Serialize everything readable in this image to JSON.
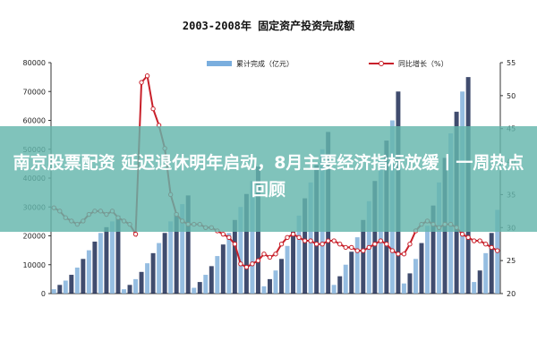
{
  "banner": {
    "title": "南京股票配资 延迟退休明年启动，8月主要经济指标放缓丨一周热点回顾"
  },
  "chart_data": {
    "type": "bar",
    "title": "2003-2008年 固定资产投资完成额",
    "legend": "top",
    "categories": [
      "",
      "",
      "",
      "",
      "",
      "",
      "",
      "",
      "",
      "",
      "",
      "",
      "",
      "",
      "",
      "",
      "",
      "",
      "",
      "",
      "",
      "",
      "",
      "",
      "",
      "",
      "",
      "",
      "",
      "",
      "",
      "",
      "",
      "",
      "",
      "",
      "",
      "",
      "",
      "",
      "",
      "",
      "",
      "",
      "",
      "",
      "",
      "",
      "",
      "",
      "",
      "",
      "",
      "",
      "",
      "",
      "",
      "",
      "",
      "",
      "",
      "",
      "",
      "",
      "",
      "",
      "",
      "",
      "",
      "",
      "",
      "",
      "",
      "",
      "",
      "",
      ""
    ],
    "x_tick_labels": [
      "",
      "",
      "",
      "",
      "",
      "",
      "",
      "",
      "",
      "",
      "",
      "",
      "",
      "",
      "",
      "",
      "",
      "",
      "",
      "",
      "",
      "",
      ""
    ],
    "series": [
      {
        "name": "累计完成（亿元）",
        "axis": "left",
        "color": "#8ab6de",
        "dark_color": "#1f2d55",
        "values": [
          1500,
          3000,
          4500,
          6500,
          9000,
          12000,
          15000,
          18000,
          21000,
          23000,
          25000,
          27000,
          1500,
          3000,
          5000,
          7500,
          10500,
          14000,
          17500,
          21000,
          25000,
          28000,
          31000,
          34000,
          2000,
          4000,
          6500,
          9500,
          13000,
          17000,
          21000,
          25500,
          30000,
          34500,
          39000,
          44000,
          2500,
          5000,
          8000,
          12000,
          16500,
          21500,
          27000,
          33000,
          38500,
          44500,
          50000,
          56000,
          3000,
          6000,
          10000,
          14500,
          19500,
          25500,
          32000,
          39000,
          46000,
          53000,
          60000,
          70000,
          3500,
          7000,
          12000,
          17500,
          23500,
          30500,
          38500,
          47000,
          55500,
          63000,
          70000,
          75000,
          4000,
          8000,
          14000,
          21000,
          29000
        ]
      },
      {
        "name": "同比增长（%）",
        "axis": "right",
        "color": "#c8202a",
        "values": [
          33.0,
          32.5,
          31.5,
          31.0,
          30.5,
          31.0,
          32.0,
          32.5,
          32.5,
          32.0,
          32.5,
          31.5,
          31.0,
          30.5,
          29.0,
          52.0,
          53.0,
          48.0,
          45.5,
          42.0,
          35.0,
          32.0,
          31.0,
          30.5,
          30.5,
          30.5,
          30.0,
          30.0,
          29.5,
          29.0,
          28.5,
          27.5,
          24.5,
          24.0,
          24.5,
          25.0,
          26.0,
          25.5,
          26.0,
          27.5,
          28.5,
          29.0,
          28.5,
          28.0,
          28.0,
          27.5,
          27.5,
          28.0,
          28.0,
          27.5,
          27.0,
          27.0,
          26.5,
          26.5,
          27.0,
          27.5,
          28.0,
          27.5,
          26.5,
          26.0,
          26.0,
          27.5,
          29.5,
          30.5,
          31.0,
          30.5,
          30.0,
          30.5,
          30.5,
          30.0,
          29.0,
          28.5,
          28.0,
          28.0,
          27.5,
          27.0,
          26.5
        ]
      }
    ],
    "y_left": {
      "ylim": [
        0,
        80000
      ],
      "ticks": [
        "0",
        "10000",
        "20000",
        "30000",
        "40000",
        "50000",
        "60000",
        "70000",
        "80000"
      ]
    },
    "y_right": {
      "ylim": [
        20,
        55
      ],
      "ticks": [
        "20",
        "25",
        "30",
        "35",
        "40",
        "45",
        "50",
        "55"
      ]
    },
    "grid": false
  }
}
